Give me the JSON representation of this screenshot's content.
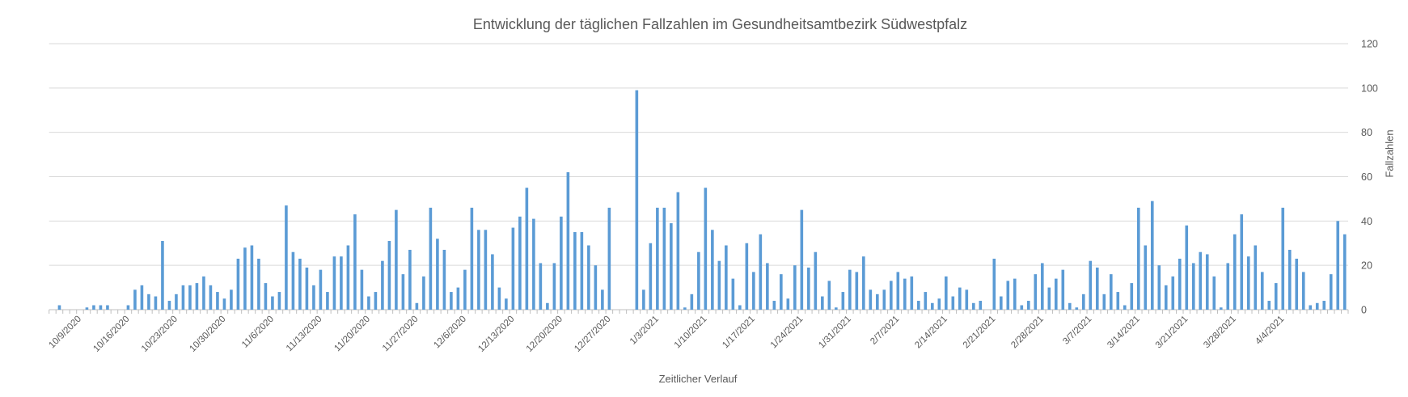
{
  "chart_data": {
    "type": "bar",
    "title": "Entwicklung der täglichen Fallzahlen im Gesundheitsamtbezirk Südwestpfalz",
    "xlabel": "Zeitlicher Verlauf",
    "ylabel": "Fallzahlen",
    "ylim": [
      0,
      120
    ],
    "y_ticks": [
      0,
      20,
      40,
      60,
      80,
      100,
      120
    ],
    "y_axis_side": "right",
    "grid": true,
    "bar_color": "#5B9BD5",
    "values": [
      0,
      2,
      0,
      0,
      0,
      1,
      2,
      2,
      2,
      0,
      0,
      2,
      9,
      11,
      7,
      6,
      31,
      4,
      7,
      11,
      11,
      12,
      15,
      11,
      8,
      5,
      9,
      23,
      28,
      29,
      23,
      12,
      6,
      8,
      47,
      26,
      23,
      19,
      11,
      18,
      8,
      24,
      24,
      29,
      43,
      18,
      6,
      8,
      22,
      31,
      45,
      16,
      27,
      3,
      15,
      46,
      32,
      27,
      8,
      10,
      18,
      46,
      36,
      36,
      25,
      10,
      5,
      37,
      42,
      55,
      41,
      21,
      3,
      21,
      42,
      62,
      35,
      35,
      29,
      20,
      9,
      46,
      0,
      0,
      0,
      99,
      9,
      30,
      46,
      46,
      39,
      53,
      1,
      7,
      26,
      55,
      36,
      22,
      29,
      14,
      2,
      30,
      17,
      34,
      21,
      4,
      16,
      5,
      20,
      45,
      19,
      26,
      6,
      13,
      1,
      8,
      18,
      17,
      24,
      9,
      7,
      9,
      13,
      17,
      14,
      15,
      4,
      8,
      3,
      5,
      15,
      6,
      10,
      9,
      3,
      4,
      0,
      23,
      6,
      13,
      14,
      2,
      4,
      16,
      21,
      10,
      14,
      18,
      3,
      1,
      7,
      22,
      19,
      7,
      16,
      8,
      2,
      12,
      46,
      29,
      49,
      20,
      11,
      15,
      23,
      38,
      21,
      26,
      25,
      15,
      1,
      21,
      34,
      43,
      24,
      29,
      17,
      4,
      12,
      46,
      27,
      23,
      17,
      2,
      3,
      4,
      16,
      40,
      34
    ],
    "x_tick_labels": [
      {
        "index": 4,
        "label": "10/9/2020"
      },
      {
        "index": 11,
        "label": "10/16/2020"
      },
      {
        "index": 18,
        "label": "10/23/2020"
      },
      {
        "index": 25,
        "label": "10/30/2020"
      },
      {
        "index": 32,
        "label": "11/6/2020"
      },
      {
        "index": 39,
        "label": "11/13/2020"
      },
      {
        "index": 46,
        "label": "11/20/2020"
      },
      {
        "index": 53,
        "label": "11/27/2020"
      },
      {
        "index": 60,
        "label": "12/6/2020"
      },
      {
        "index": 67,
        "label": "12/13/2020"
      },
      {
        "index": 74,
        "label": "12/20/2020"
      },
      {
        "index": 81,
        "label": "12/27/2020"
      },
      {
        "index": 88,
        "label": "1/3/2021"
      },
      {
        "index": 95,
        "label": "1/10/2021"
      },
      {
        "index": 102,
        "label": "1/17/2021"
      },
      {
        "index": 109,
        "label": "1/24/2021"
      },
      {
        "index": 116,
        "label": "1/31/2021"
      },
      {
        "index": 123,
        "label": "2/7/2021"
      },
      {
        "index": 130,
        "label": "2/14/2021"
      },
      {
        "index": 137,
        "label": "2/21/2021"
      },
      {
        "index": 144,
        "label": "2/28/2021"
      },
      {
        "index": 151,
        "label": "3/7/2021"
      },
      {
        "index": 158,
        "label": "3/14/2021"
      },
      {
        "index": 165,
        "label": "3/21/2021"
      },
      {
        "index": 172,
        "label": "3/28/2021"
      },
      {
        "index": 179,
        "label": "4/4/2021"
      }
    ]
  }
}
